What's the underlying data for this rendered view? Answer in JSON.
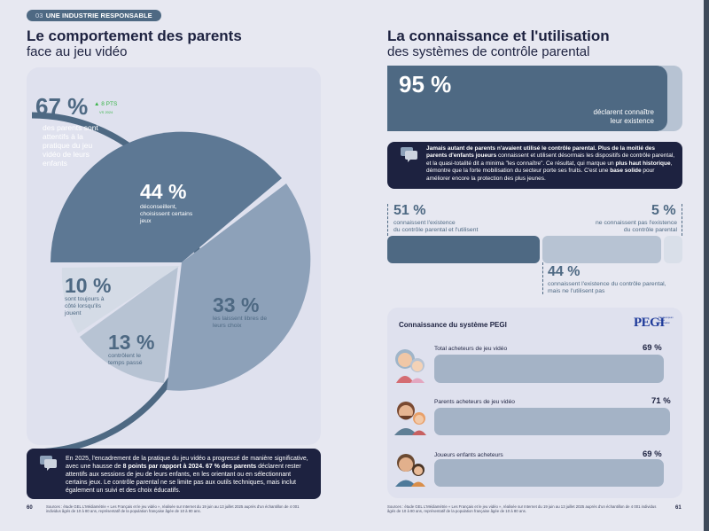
{
  "header": {
    "section_number": "03",
    "section_label": "UNE INDUSTRIE RESPONSABLE"
  },
  "left": {
    "title_bold": "Le comportement des parents",
    "title_light": "face au jeu vidéo",
    "stat_67": {
      "value": "67 %",
      "badge": "8 PTS",
      "badge_sub": "VS 2024",
      "label": "des parents sont attentifs à la pratique du jeu vidéo de leurs enfants"
    },
    "pie": {
      "slices": [
        {
          "value": "44 %",
          "label": "déconseillent, choisissent certains jeux",
          "color": "#5d7894"
        },
        {
          "value": "33 %",
          "label": "les laissent libres de leurs choix",
          "color": "#8da1b9"
        },
        {
          "value": "13 %",
          "label": "contrôlent le temps passé",
          "color": "#b7c3d3"
        },
        {
          "value": "10 %",
          "label": "sont toujours à côté lorsqu'ils jouent",
          "color": "#d4dbe6"
        }
      ]
    },
    "info_box": {
      "text_1": "En 2025, l'encadrement de la pratique du jeu vidéo a progressé de manière significative, avec une hausse de ",
      "text_bold_1": "8 points par rapport à 2024. 67 % des parents",
      "text_2": " déclarent rester attentifs aux sessions de jeu de leurs enfants, en les orientant ou en sélectionnant certains jeux. Le contrôle parental ne se limite pas aux outils techniques, mais inclut également un suivi et des choix éducatifs."
    },
    "page_number": "60",
    "source": "Sources : étude GEL L'Médiamétrie « Les Français et le jeu vidéo », réalisée sur Internet du 19 juin au 13 juillet 2025 auprès d'un échantillon de 4 001 individus âgés de 10 à 80 ans, représentatif de la population française âgée de 10 à 80 ans."
  },
  "right": {
    "title_bold": "La connaissance et l'utilisation",
    "title_light": "des systèmes de contrôle parental",
    "stat_95": {
      "value": "95 %",
      "label_1": "déclarent connaître",
      "label_2": "leur existence"
    },
    "info_box": {
      "bold_1": "Jamais autant de parents n'avaient utilisé le contrôle parental. Plus de la moitié des parents d'enfants joueurs",
      "text_1": " connaissent et utilisent désormais les dispositifs de contrôle parental, et la quasi-totalité dit a minima \"les connaître\". Ce résultat, qui marque un ",
      "bold_2": "plus haut historique",
      "text_2": ", démontre que la forte mobilisation du secteur porte ses fruits. C'est une ",
      "bold_3": "base solide",
      "text_3": " pour améliorer encore la protection des plus jeunes."
    },
    "breakdown": {
      "know_use": {
        "value": "51 %",
        "label_1": "connaissent l'existence",
        "label_2": "du contrôle parental et l'utilisent",
        "fraction": 0.51
      },
      "know_not_use": {
        "value": "44 %",
        "label_1": "connaissent l'existence du contrôle parental,",
        "label_2": "mais ne l'utilisent pas",
        "fraction": 0.44
      },
      "dont_know": {
        "value": "5 %",
        "label_1": "ne connaissent pas l'existence",
        "label_2": "du contrôle parental",
        "fraction": 0.05
      }
    },
    "pegi": {
      "title": "Connaissance du système PEGI",
      "logo": "PEGI",
      "logo_sub": "Pan European Game Information",
      "rows": [
        {
          "label": "Total acheteurs de jeu vidéo",
          "value": "69 %",
          "fraction": 0.69
        },
        {
          "label": "Parents acheteurs de jeu vidéo",
          "value": "71 %",
          "fraction": 0.71
        },
        {
          "label": "Joueurs enfants acheteurs",
          "value": "69 %",
          "fraction": 0.69
        }
      ]
    },
    "page_number": "61",
    "source": "Sources : étude GEL L'Médiamétrie « Les Français et le jeu vidéo », réalisée sur Internet du 19 juin au 13 juillet 2025 auprès d'un échantillon de 4 001 individus âgés de 10 à 80 ans, représentatif de la population française âgée de 10 à 80 ans."
  },
  "colors": {
    "navy": "#1d2240",
    "slate": "#4e6983",
    "mid": "#8da1b9",
    "light": "#b7c3d3",
    "green": "#3bb54a"
  }
}
